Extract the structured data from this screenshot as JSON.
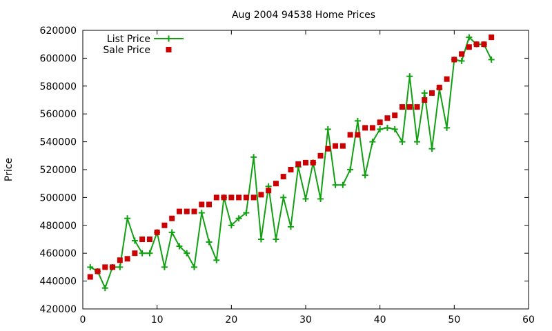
{
  "chart_data": {
    "type": "line",
    "title": "Aug 2004 94538 Home Prices",
    "xlabel": "",
    "ylabel": "Price",
    "xlim": [
      0,
      60
    ],
    "ylim": [
      420000,
      620000
    ],
    "x_ticks": [
      0,
      10,
      20,
      30,
      40,
      50,
      60
    ],
    "y_ticks": [
      420000,
      440000,
      460000,
      480000,
      500000,
      520000,
      540000,
      560000,
      580000,
      600000,
      620000
    ],
    "grid": false,
    "legend_position": "top-left",
    "series": [
      {
        "name": "List Price",
        "style": "line-with-plus-markers",
        "color": "#11a011",
        "x": [
          1,
          2,
          3,
          4,
          5,
          6,
          7,
          8,
          9,
          10,
          11,
          12,
          13,
          14,
          15,
          16,
          17,
          18,
          19,
          20,
          21,
          22,
          23,
          24,
          25,
          26,
          27,
          28,
          29,
          30,
          31,
          32,
          33,
          34,
          35,
          36,
          37,
          38,
          39,
          40,
          41,
          42,
          43,
          44,
          45,
          46,
          47,
          48,
          49,
          50,
          51,
          52,
          53,
          54,
          55
        ],
        "y": [
          450000,
          447000,
          435000,
          450000,
          450000,
          485000,
          469000,
          460000,
          460000,
          475000,
          450000,
          475000,
          465000,
          460000,
          450000,
          489000,
          468000,
          455000,
          500000,
          480000,
          485000,
          489000,
          529000,
          470000,
          508000,
          470000,
          500000,
          479000,
          522000,
          499000,
          525000,
          499000,
          549000,
          509000,
          509000,
          520000,
          555000,
          516000,
          540000,
          549000,
          550000,
          549000,
          540000,
          587000,
          540000,
          575000,
          535000,
          578000,
          550000,
          599000,
          598000,
          615000,
          610000,
          610000,
          599000
        ]
      },
      {
        "name": "Sale Price",
        "style": "square-markers",
        "color": "#cc0000",
        "x": [
          1,
          2,
          3,
          4,
          5,
          6,
          7,
          8,
          9,
          10,
          11,
          12,
          13,
          14,
          15,
          16,
          17,
          18,
          19,
          20,
          21,
          22,
          23,
          24,
          25,
          26,
          27,
          28,
          29,
          30,
          31,
          32,
          33,
          34,
          35,
          36,
          37,
          38,
          39,
          40,
          41,
          42,
          43,
          44,
          45,
          46,
          47,
          48,
          49,
          50,
          51,
          52,
          53,
          54,
          55
        ],
        "y": [
          443000,
          447000,
          450000,
          450000,
          455000,
          456000,
          460000,
          470000,
          470000,
          475000,
          480000,
          485000,
          490000,
          490000,
          490000,
          495000,
          495000,
          500000,
          500000,
          500000,
          500000,
          500000,
          500000,
          502000,
          505000,
          510000,
          515000,
          520000,
          524000,
          525000,
          525000,
          530000,
          535000,
          537000,
          537000,
          545000,
          545000,
          550000,
          550000,
          554000,
          557000,
          559000,
          565000,
          565000,
          565000,
          570000,
          575000,
          579000,
          585000,
          599000,
          603000,
          608000,
          610000,
          610000,
          615000
        ]
      }
    ]
  }
}
